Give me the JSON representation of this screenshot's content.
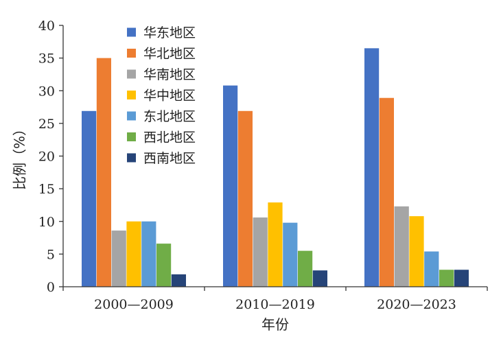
{
  "chart_data": {
    "type": "bar",
    "title": "",
    "xlabel": "年份",
    "ylabel": "比例（%）",
    "ylim": [
      0,
      40
    ],
    "yticks": [
      0,
      5,
      10,
      15,
      20,
      25,
      30,
      35,
      40
    ],
    "grid": false,
    "legend_position": "top-left (inside plot)",
    "categories": [
      "2000—2009",
      "2010—2019",
      "2020—2023"
    ],
    "series": [
      {
        "name": "华东地区",
        "color": "#4472C4",
        "values": [
          26.9,
          30.8,
          36.5
        ]
      },
      {
        "name": "华北地区",
        "color": "#ED7D31",
        "values": [
          35.0,
          26.9,
          28.9
        ]
      },
      {
        "name": "华南地区",
        "color": "#A5A5A5",
        "values": [
          8.6,
          10.6,
          12.3
        ]
      },
      {
        "name": "华中地区",
        "color": "#FFC000",
        "values": [
          10.0,
          12.9,
          10.8
        ]
      },
      {
        "name": "东北地区",
        "color": "#5B9BD5",
        "values": [
          10.0,
          9.8,
          5.4
        ]
      },
      {
        "name": "西北地区",
        "color": "#70AD47",
        "values": [
          6.6,
          5.5,
          2.6
        ]
      },
      {
        "name": "西南地区",
        "color": "#264478",
        "values": [
          1.9,
          2.5,
          2.6
        ]
      }
    ]
  }
}
